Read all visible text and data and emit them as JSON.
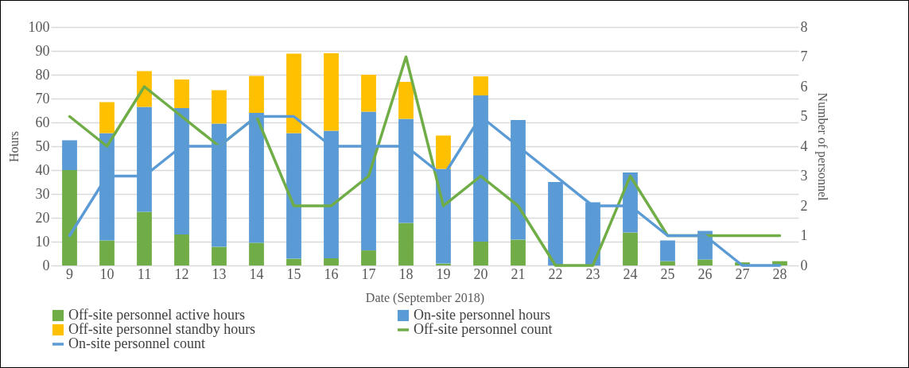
{
  "chart_data": {
    "type": "bar",
    "xlabel": "Date (September 2018)",
    "ylabel": "Hours",
    "y2label": "Number of personnel",
    "categories": [
      "9",
      "10",
      "11",
      "12",
      "13",
      "14",
      "15",
      "16",
      "17",
      "18",
      "19",
      "20",
      "21",
      "22",
      "23",
      "24",
      "25",
      "26",
      "27",
      "28"
    ],
    "stacked": true,
    "grid": "y",
    "legend": "bottom",
    "ylim": [
      0,
      100
    ],
    "yticks": [
      0,
      10,
      20,
      30,
      40,
      50,
      60,
      70,
      80,
      90,
      100
    ],
    "y2lim": [
      0,
      8
    ],
    "y2ticks": [
      0,
      1,
      2,
      3,
      4,
      5,
      6,
      7,
      8
    ],
    "series": [
      {
        "name": "Off-site personnel active hours",
        "color": "#70ad47",
        "values": [
          40,
          10.5,
          22.5,
          13,
          7.8,
          9.5,
          2.8,
          3,
          6.3,
          17.8,
          0.8,
          10,
          10.8,
          0,
          0,
          13.8,
          1.8,
          2.5,
          1.3,
          1.8
        ]
      },
      {
        "name": "On-site personnel hours",
        "color": "#5b9bd5",
        "values": [
          12.5,
          45,
          44,
          53,
          51.7,
          54.5,
          52.7,
          53.5,
          58.2,
          43.7,
          39.7,
          61.3,
          50.2,
          35,
          26.5,
          25.2,
          8.7,
          12,
          0,
          0
        ]
      },
      {
        "name": "Off-site personnel standby hours",
        "color": "#ffc000",
        "values": [
          0,
          13,
          15,
          12,
          14,
          15.5,
          33.3,
          32.5,
          15.5,
          15.5,
          14,
          8,
          0,
          0,
          0,
          0,
          0,
          0,
          0,
          0
        ]
      },
      {
        "name": "Off-site personnel count",
        "color": "#70ad47",
        "type": "line",
        "axis": "y2",
        "values": [
          5,
          4,
          6,
          5,
          4,
          5,
          2,
          2,
          3,
          7,
          2,
          3,
          2,
          0,
          0,
          3,
          1,
          1,
          1,
          1
        ]
      },
      {
        "name": "On-site personnel count",
        "color": "#5b9bd5",
        "type": "line",
        "axis": "y2",
        "values": [
          1,
          3,
          3,
          4,
          4,
          5,
          5,
          4,
          4,
          4,
          3,
          5,
          4,
          3,
          2,
          2,
          1,
          1,
          0,
          0
        ]
      }
    ]
  }
}
